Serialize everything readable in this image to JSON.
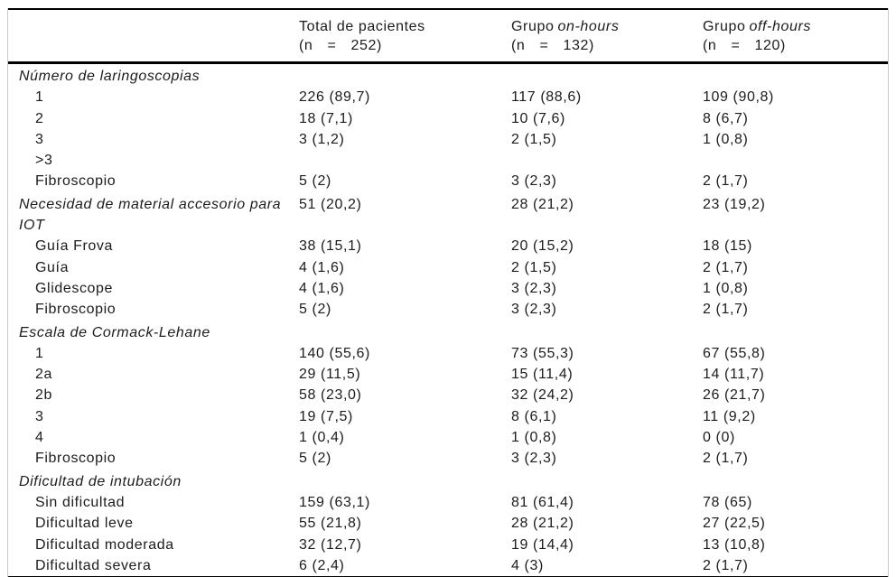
{
  "table": {
    "header": {
      "cols": [
        {
          "text": "Total de pacientes",
          "italic": "",
          "n": "(n = 252)"
        },
        {
          "text": "Grupo",
          "italic": "on-hours",
          "n": "(n = 132)"
        },
        {
          "text": "Grupo",
          "italic": "off-hours",
          "n": "(n = 120)"
        }
      ]
    },
    "sections": [
      {
        "title": "Número de laringoscopias",
        "values": [
          "",
          "",
          ""
        ],
        "rows": [
          {
            "label": "1",
            "values": [
              "226 (89,7)",
              "117 (88,6)",
              "109 (90,8)"
            ]
          },
          {
            "label": "2",
            "values": [
              "18 (7,1)",
              "10 (7,6)",
              "8 (6,7)"
            ]
          },
          {
            "label": "3",
            "values": [
              "3 (1,2)",
              "2 (1,5)",
              "1 (0,8)"
            ]
          },
          {
            "label": ">3",
            "values": [
              "",
              "",
              ""
            ]
          },
          {
            "label": "Fibroscopio",
            "values": [
              "5 (2)",
              "3 (2,3)",
              "2 (1,7)"
            ]
          }
        ]
      },
      {
        "title": "Necesidad de material accesorio para IOT",
        "values": [
          "51 (20,2)",
          "28 (21,2)",
          "23 (19,2)"
        ],
        "rows": [
          {
            "label": "Guía Frova",
            "values": [
              "38 (15,1)",
              "20 (15,2)",
              "18 (15)"
            ]
          },
          {
            "label": "Guía",
            "values": [
              "4 (1,6)",
              "2 (1,5)",
              "2 (1,7)"
            ]
          },
          {
            "label": "Glidescope",
            "values": [
              "4 (1,6)",
              "3 (2,3)",
              "1 (0,8)"
            ]
          },
          {
            "label": "Fibroscopio",
            "values": [
              "5 (2)",
              "3 (2,3)",
              "2 (1,7)"
            ]
          }
        ]
      },
      {
        "title": "Escala de Cormack-Lehane",
        "values": [
          "",
          "",
          ""
        ],
        "rows": [
          {
            "label": "1",
            "values": [
              "140 (55,6)",
              "73 (55,3)",
              "67 (55,8)"
            ]
          },
          {
            "label": "2a",
            "values": [
              "29 (11,5)",
              "15 (11,4)",
              "14 (11,7)"
            ]
          },
          {
            "label": "2b",
            "values": [
              "58 (23,0)",
              "32 (24,2)",
              "26 (21,7)"
            ]
          },
          {
            "label": "3",
            "values": [
              "19 (7,5)",
              "8 (6,1)",
              "11 (9,2)"
            ]
          },
          {
            "label": "4",
            "values": [
              "1 (0,4)",
              "1 (0,8)",
              "0 (0)"
            ]
          },
          {
            "label": "Fibroscopio",
            "values": [
              "5 (2)",
              "3 (2,3)",
              "2 (1,7)"
            ]
          }
        ]
      },
      {
        "title": "Dificultad de intubación",
        "values": [
          "",
          "",
          ""
        ],
        "rows": [
          {
            "label": "Sin dificultad",
            "values": [
              "159 (63,1)",
              "81 (61,4)",
              "78 (65)"
            ]
          },
          {
            "label": "Dificultad leve",
            "values": [
              "55 (21,8)",
              "28 (21,2)",
              "27 (22,5)"
            ]
          },
          {
            "label": "Dificultad moderada",
            "values": [
              "32 (12,7)",
              "19 (14,4)",
              "13 (10,8)"
            ]
          },
          {
            "label": "Dificultad severa",
            "values": [
              "6 (2,4)",
              "4 (3)",
              "2 (1,7)"
            ]
          }
        ]
      }
    ]
  }
}
